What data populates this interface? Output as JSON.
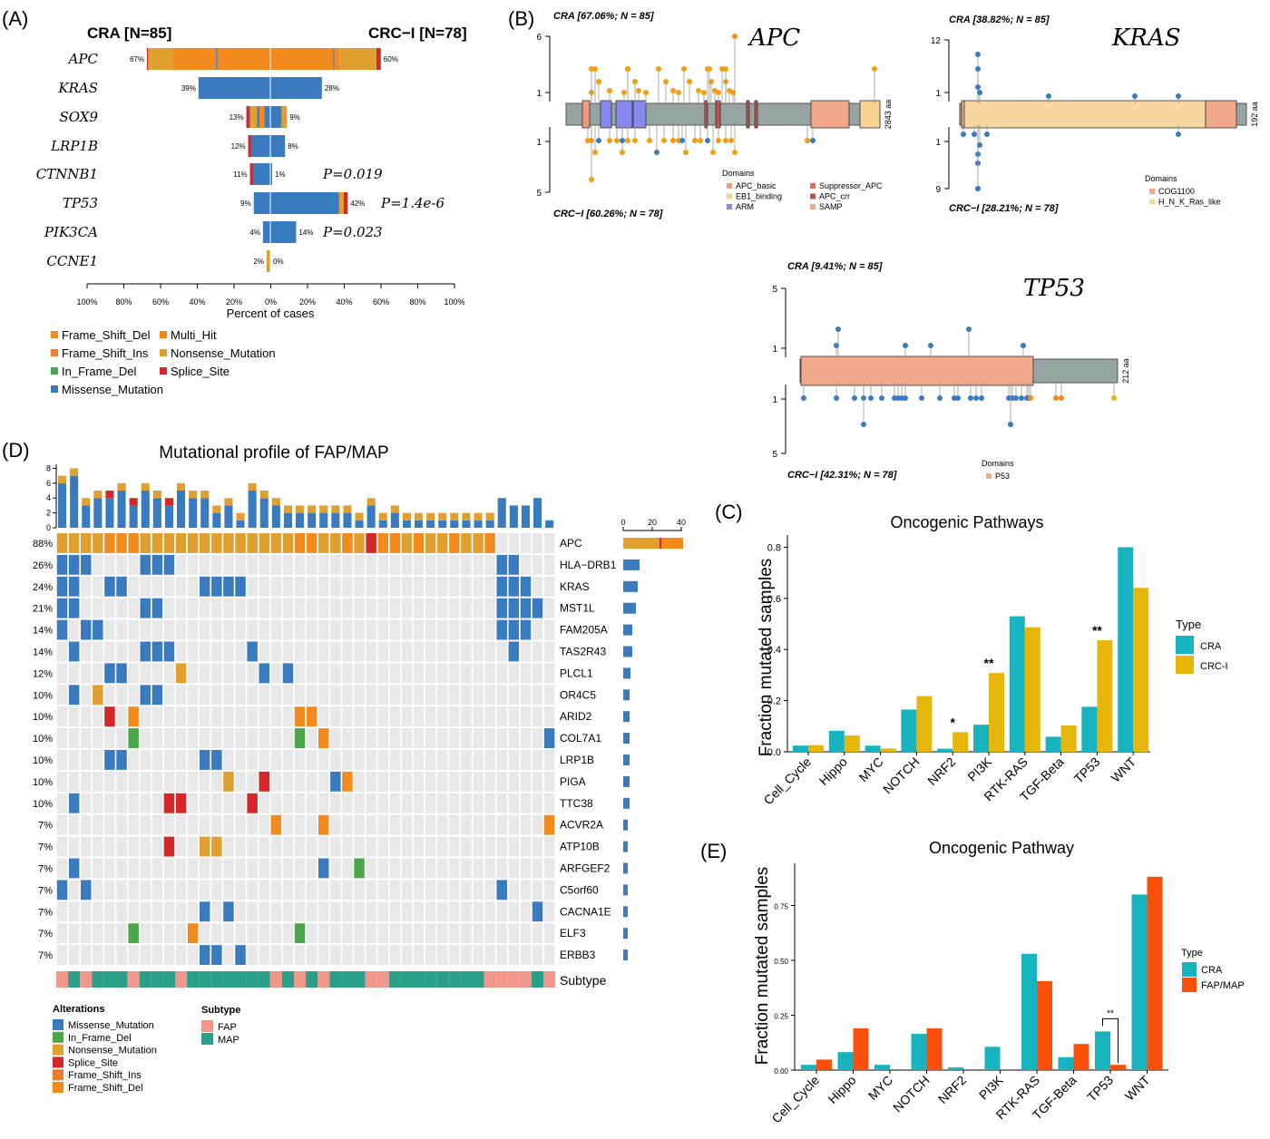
{
  "colors": {
    "missense": "#3a7bbf",
    "in_frame_del": "#4aa84a",
    "nonsense": "#e0a030",
    "splice": "#d62728",
    "fs_ins": "#ef7d30",
    "fs_del": "#f28a1e",
    "multi_hit": "#f0861a",
    "cra": "#17b4c0",
    "crci": "#e6b70a",
    "fapmap": "#fc4f0a",
    "fap": "#f0968a",
    "map": "#2aa08a",
    "gray": "#e8e8e8"
  },
  "panel_labels": {
    "a": "(A)",
    "b": "(B)",
    "c": "(C)",
    "d": "(D)",
    "e": "(E)"
  },
  "panelA": {
    "left_title": "CRA [N=85]",
    "right_title": "CRC−I [N=78]",
    "xlabel": "Percent of cases",
    "ticks": [
      "100%",
      "80%",
      "60%",
      "40%",
      "20%",
      "0%",
      "20%",
      "40%",
      "60%",
      "80%",
      "100%"
    ],
    "genes": [
      {
        "name": "APC",
        "left": 67,
        "right": 60,
        "left_label": "67%",
        "right_label": "60%",
        "p": ""
      },
      {
        "name": "KRAS",
        "left": 39,
        "right": 28,
        "left_label": "39%",
        "right_label": "28%",
        "p": ""
      },
      {
        "name": "SOX9",
        "left": 13,
        "right": 9,
        "left_label": "13%",
        "right_label": "9%",
        "p": ""
      },
      {
        "name": "LRP1B",
        "left": 12,
        "right": 8,
        "left_label": "12%",
        "right_label": "8%",
        "p": ""
      },
      {
        "name": "CTNNB1",
        "left": 11,
        "right": 1,
        "left_label": "11%",
        "right_label": "1%",
        "p": "P=0.019"
      },
      {
        "name": "TP53",
        "left": 9,
        "right": 42,
        "left_label": "9%",
        "right_label": "42%",
        "p": "P=1.4e-6"
      },
      {
        "name": "PIK3CA",
        "left": 4,
        "right": 14,
        "left_label": "4%",
        "right_label": "14%",
        "p": "P=0.023"
      },
      {
        "name": "CCNE1",
        "left": 2,
        "right": 0,
        "left_label": "2%",
        "right_label": "0%",
        "p": ""
      }
    ],
    "legend": [
      "Frame_Shift_Del",
      "Multi_Hit",
      "Frame_Shift_Ins",
      "Nonsense_Mutation",
      "In_Frame_Del",
      "Splice_Site",
      "Missense_Mutation"
    ]
  },
  "panelB": {
    "apc": {
      "gene": "APC",
      "top": "CRA [67.06%; N = 85]",
      "bottom": "CRC−I [60.26%; N = 78]",
      "length": "2843 aa",
      "yticks_top": [
        "6",
        "1"
      ],
      "yticks_bottom": [
        "1",
        "5"
      ],
      "domains_title": "Domains",
      "domains": [
        "APC_basic",
        "EB1_binding",
        "ARM",
        "Suppressor_APC",
        "APC_crr",
        "SAMP"
      ]
    },
    "kras": {
      "gene": "KRAS",
      "top": "CRA [38.82%; N = 85]",
      "bottom": "CRC−I [28.21%; N = 78]",
      "length": "192 aa",
      "yticks_top": [
        "12",
        "1"
      ],
      "yticks_bottom": [
        "1",
        "9"
      ],
      "domains_title": "Domains",
      "domains": [
        "COG1100",
        "H_N_K_Ras_like"
      ]
    },
    "tp53": {
      "gene": "TP53",
      "top": "CRA [9.41%; N = 85]",
      "bottom": "CRC−I [42.31%; N = 78]",
      "length": "212 aa",
      "yticks_top": [
        "5",
        "1"
      ],
      "yticks_bottom": [
        "1",
        "5"
      ],
      "domains_title": "Domains",
      "domains": [
        "P53"
      ]
    }
  },
  "panelC": {
    "title": "Oncogenic Pathways",
    "ylabel": "Fraction mutated samples",
    "legend_title": "Type",
    "series_names": [
      "CRA",
      "CRC-I"
    ],
    "yticks": [
      "0.0",
      "0.2",
      "0.4",
      "0.6",
      "0.8"
    ],
    "categories": [
      "Cell_Cycle",
      "Hippo",
      "MYC",
      "NOTCH",
      "NRF2",
      "PI3K",
      "RTK-RAS",
      "TGF-Beta",
      "TP53",
      "WNT"
    ],
    "series": [
      {
        "name": "CRA",
        "values": [
          0.024,
          0.082,
          0.024,
          0.165,
          0.012,
          0.106,
          0.53,
          0.059,
          0.176,
          0.8
        ]
      },
      {
        "name": "CRC-I",
        "values": [
          0.026,
          0.064,
          0.013,
          0.218,
          0.077,
          0.308,
          0.487,
          0.103,
          0.436,
          0.641
        ]
      }
    ],
    "significance": [
      {
        "index": 4,
        "label": "*"
      },
      {
        "index": 5,
        "label": "**"
      },
      {
        "index": 8,
        "label": "**"
      }
    ]
  },
  "panelD": {
    "title": "Mutational profile of FAP/MAP",
    "genes": [
      "APC",
      "HLA−DRB1",
      "KRAS",
      "MST1L",
      "FAM205A",
      "TAS2R43",
      "PLCL1",
      "OR4C5",
      "ARID2",
      "COL7A1",
      "LRP1B",
      "PIGA",
      "TTC38",
      "ACVR2A",
      "ATP10B",
      "ARFGEF2",
      "C5orf60",
      "CACNA1E",
      "ELF3",
      "ERBB3"
    ],
    "percents": [
      "88%",
      "26%",
      "24%",
      "21%",
      "14%",
      "14%",
      "12%",
      "10%",
      "10%",
      "10%",
      "10%",
      "10%",
      "10%",
      "7%",
      "7%",
      "7%",
      "7%",
      "7%",
      "7%",
      "7%"
    ],
    "top_ticks": [
      "0",
      "2",
      "4",
      "6",
      "8"
    ],
    "side_ticks": [
      "0",
      "20",
      "40"
    ],
    "subtype_label": "Subtype",
    "alterations_title": "Alterations",
    "alterations": [
      "Missense_Mutation",
      "In_Frame_Del",
      "Nonsense_Mutation",
      "Splice_Site",
      "Frame_Shift_Ins",
      "Frame_Shift_Del"
    ],
    "subtype_title": "Subtype",
    "subtypes": [
      "FAP",
      "MAP"
    ]
  },
  "panelE": {
    "title": "Oncogenic Pathway",
    "ylabel": "Fraction mutated samples",
    "legend_title": "Type",
    "series_names": [
      "CRA",
      "FAP/MAP"
    ],
    "yticks": [
      "0.00",
      "0.25",
      "0.50",
      "0.75"
    ],
    "categories": [
      "Cell_Cycle",
      "Hippo",
      "MYC",
      "NOTCH",
      "NRF2",
      "PI3K",
      "RTK-RAS",
      "TGF-Beta",
      "TP53",
      "WNT"
    ],
    "series": [
      {
        "name": "CRA",
        "values": [
          0.024,
          0.082,
          0.024,
          0.165,
          0.012,
          0.106,
          0.53,
          0.059,
          0.176,
          0.8
        ]
      },
      {
        "name": "FAP/MAP",
        "values": [
          0.048,
          0.19,
          0,
          0.19,
          0,
          0,
          0.405,
          0.119,
          0.024,
          0.881
        ]
      }
    ],
    "significance": [
      {
        "index": 8,
        "label": "**"
      }
    ]
  },
  "chart_data": [
    {
      "type": "bar",
      "title": "",
      "xlabel": "Percent of cases",
      "categories": [
        "APC",
        "KRAS",
        "SOX9",
        "LRP1B",
        "CTNNB1",
        "TP53",
        "PIK3CA",
        "CCNE1"
      ],
      "series": [
        {
          "name": "CRA [N=85]",
          "values": [
            67,
            39,
            13,
            12,
            11,
            9,
            4,
            2
          ]
        },
        {
          "name": "CRC−I [N=78]",
          "values": [
            60,
            28,
            9,
            8,
            1,
            42,
            14,
            0
          ]
        }
      ]
    },
    {
      "type": "bar",
      "title": "Oncogenic Pathways",
      "ylabel": "Fraction mutated samples",
      "categories": [
        "Cell_Cycle",
        "Hippo",
        "MYC",
        "NOTCH",
        "NRF2",
        "PI3K",
        "RTK-RAS",
        "TGF-Beta",
        "TP53",
        "WNT"
      ],
      "series": [
        {
          "name": "CRA",
          "values": [
            0.024,
            0.082,
            0.024,
            0.165,
            0.012,
            0.106,
            0.53,
            0.059,
            0.176,
            0.8
          ]
        },
        {
          "name": "CRC-I",
          "values": [
            0.026,
            0.064,
            0.013,
            0.218,
            0.077,
            0.308,
            0.487,
            0.103,
            0.436,
            0.641
          ]
        }
      ],
      "ylim": [
        0,
        0.82
      ]
    },
    {
      "type": "bar",
      "title": "Oncogenic Pathway",
      "ylabel": "Fraction mutated samples",
      "categories": [
        "Cell_Cycle",
        "Hippo",
        "MYC",
        "NOTCH",
        "NRF2",
        "PI3K",
        "RTK-RAS",
        "TGF-Beta",
        "TP53",
        "WNT"
      ],
      "series": [
        {
          "name": "CRA",
          "values": [
            0.024,
            0.082,
            0.024,
            0.165,
            0.012,
            0.106,
            0.53,
            0.059,
            0.176,
            0.8
          ]
        },
        {
          "name": "FAP/MAP",
          "values": [
            0.048,
            0.19,
            0,
            0.19,
            0,
            0,
            0.405,
            0.119,
            0.024,
            0.881
          ]
        }
      ],
      "ylim": [
        0,
        0.9
      ]
    }
  ]
}
